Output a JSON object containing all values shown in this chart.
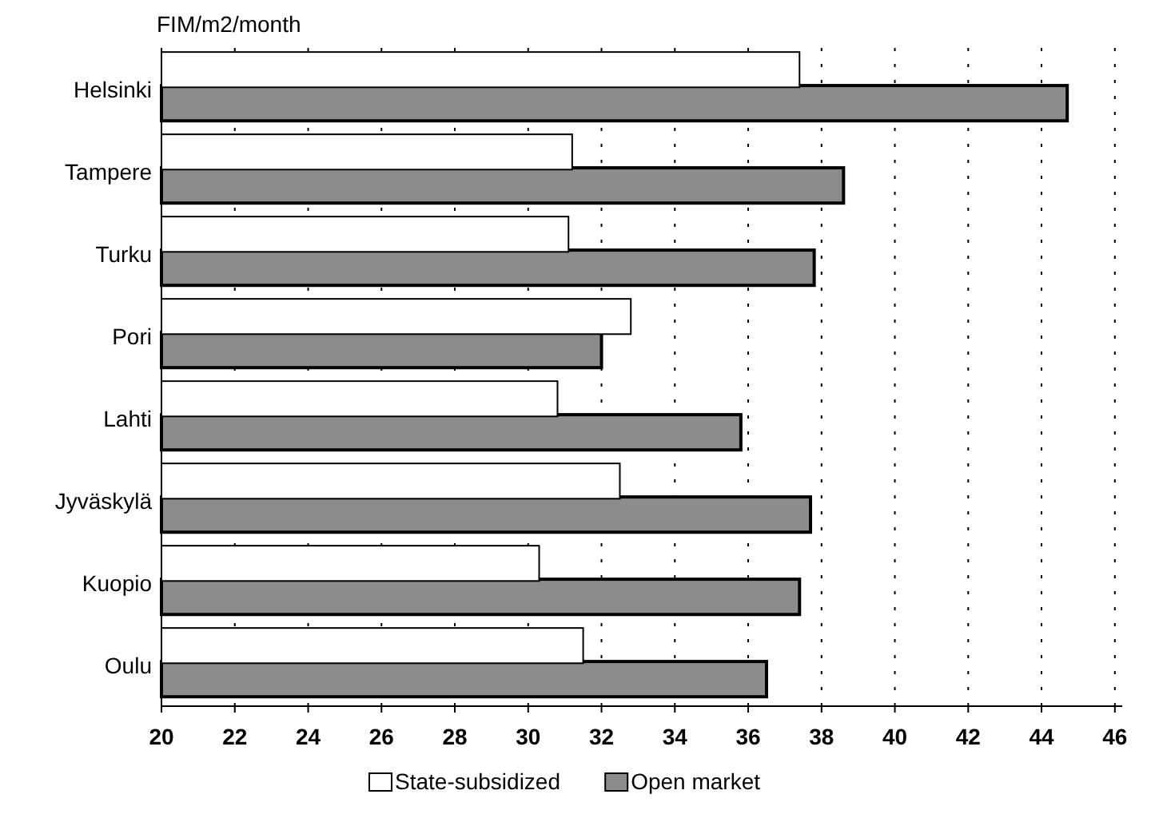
{
  "chart_data": {
    "type": "bar",
    "orientation": "horizontal",
    "xlabel": "FIM/m2/month",
    "categories": [
      "Helsinki",
      "Tampere",
      "Turku",
      "Pori",
      "Lahti",
      "Jyväskylä",
      "Kuopio",
      "Oulu"
    ],
    "series": [
      {
        "name": "State-subsidized",
        "color": "#ffffff",
        "values": [
          37.4,
          31.2,
          31.1,
          32.8,
          30.8,
          32.5,
          30.3,
          31.5
        ]
      },
      {
        "name": "Open market",
        "color": "#8c8c8c",
        "values": [
          44.7,
          38.6,
          37.8,
          32.0,
          35.8,
          37.7,
          37.4,
          36.5
        ]
      }
    ],
    "xlim": [
      20,
      46.2
    ],
    "xticks": [
      20,
      22,
      24,
      26,
      28,
      30,
      32,
      34,
      36,
      38,
      40,
      42,
      44,
      46
    ],
    "grid": "x",
    "legend": "bottom"
  }
}
